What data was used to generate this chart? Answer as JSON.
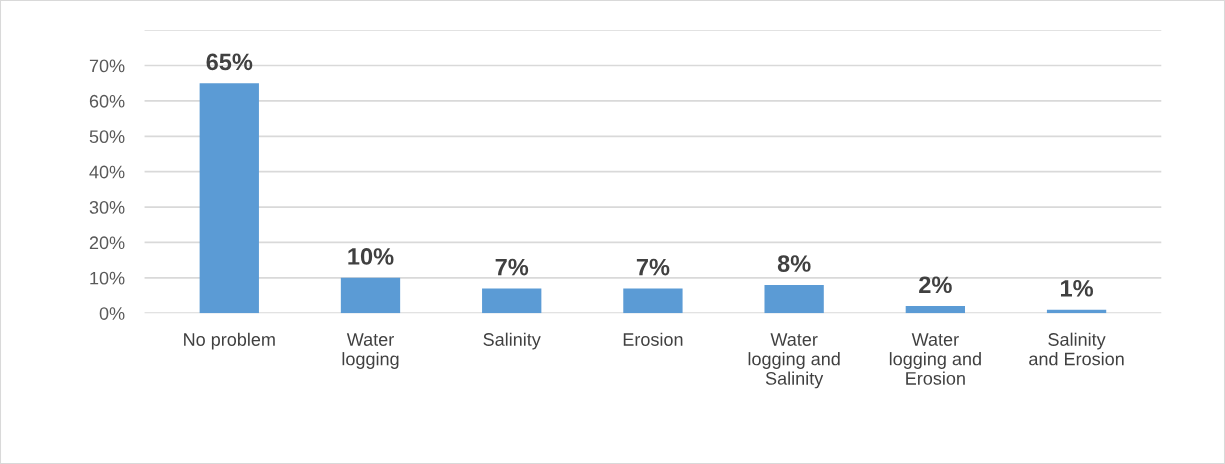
{
  "chart_data": {
    "type": "bar",
    "categories": [
      "No problem",
      "Water logging",
      "Salinity",
      "Erosion",
      "Water logging and Salinity",
      "Water logging and Erosion",
      "Salinity and Erosion"
    ],
    "values": [
      65,
      10,
      7,
      7,
      8,
      2,
      1
    ],
    "value_labels": [
      "65%",
      "10%",
      "7%",
      "7%",
      "8%",
      "2%",
      "1%"
    ],
    "color": "#5b9bd5",
    "ylim": [
      0,
      80
    ],
    "yticks": [
      {
        "value": 0,
        "label": "0%"
      },
      {
        "value": 10,
        "label": "10%"
      },
      {
        "value": 20,
        "label": "20%"
      },
      {
        "value": 30,
        "label": "30%"
      },
      {
        "value": 40,
        "label": "40%"
      },
      {
        "value": 50,
        "label": "50%"
      },
      {
        "value": 60,
        "label": "60%"
      },
      {
        "value": 70,
        "label": "70%"
      },
      {
        "value": 80,
        "label": null
      }
    ],
    "grid": "y"
  }
}
